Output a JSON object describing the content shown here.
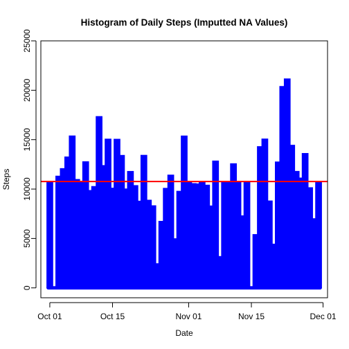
{
  "chart_data": {
    "type": "bar",
    "title": "Histogram of Daily Steps (Imputted NA Values)",
    "xlabel": "Date",
    "ylabel": "Steps",
    "x_ticks": [
      {
        "date": "2012-10-01",
        "label": "Oct 01"
      },
      {
        "date": "2012-10-15",
        "label": "Oct 15"
      },
      {
        "date": "2012-11-01",
        "label": "Nov 01"
      },
      {
        "date": "2012-11-15",
        "label": "Nov 15"
      },
      {
        "date": "2012-12-01",
        "label": "Dec 01"
      }
    ],
    "y_ticks": [
      0,
      5000,
      10000,
      15000,
      20000,
      25000
    ],
    "xlim": [
      "2012-09-29",
      "2012-12-02"
    ],
    "ylim": [
      -1000,
      25000
    ],
    "series": [
      {
        "x": [
          "2012-10-01",
          "2012-10-02",
          "2012-10-03",
          "2012-10-04",
          "2012-10-05",
          "2012-10-06",
          "2012-10-07",
          "2012-10-08",
          "2012-10-09",
          "2012-10-10",
          "2012-10-11",
          "2012-10-12",
          "2012-10-13",
          "2012-10-14",
          "2012-10-15",
          "2012-10-16",
          "2012-10-17",
          "2012-10-18",
          "2012-10-19",
          "2012-10-20",
          "2012-10-21",
          "2012-10-22",
          "2012-10-23",
          "2012-10-24",
          "2012-10-25",
          "2012-10-26",
          "2012-10-27",
          "2012-10-28",
          "2012-10-29",
          "2012-10-30",
          "2012-10-31",
          "2012-11-01",
          "2012-11-02",
          "2012-11-03",
          "2012-11-04",
          "2012-11-05",
          "2012-11-06",
          "2012-11-07",
          "2012-11-08",
          "2012-11-09",
          "2012-11-10",
          "2012-11-11",
          "2012-11-12",
          "2012-11-13",
          "2012-11-14",
          "2012-11-15",
          "2012-11-16",
          "2012-11-17",
          "2012-11-18",
          "2012-11-19",
          "2012-11-20",
          "2012-11-21",
          "2012-11-22",
          "2012-11-23",
          "2012-11-24",
          "2012-11-25",
          "2012-11-26",
          "2012-11-27",
          "2012-11-28",
          "2012-11-29",
          "2012-11-30"
        ],
        "values": [
          10766,
          126,
          11352,
          12116,
          13294,
          15420,
          11015,
          10766,
          12811,
          9900,
          10304,
          17382,
          12426,
          15098,
          10139,
          15084,
          13452,
          10056,
          11829,
          10395,
          8821,
          13460,
          8918,
          8355,
          2492,
          6778,
          10119,
          11458,
          5018,
          9819,
          15414,
          10766,
          10600,
          10571,
          10766,
          10439,
          8334,
          12883,
          3219,
          10766,
          10766,
          12608,
          10765,
          7336,
          10766,
          41,
          5441,
          14339,
          15110,
          8841,
          4472,
          12787,
          20427,
          21194,
          14478,
          11834,
          11162,
          13646,
          10183,
          7047,
          10766
        ]
      }
    ],
    "hlines": [
      {
        "y": 10766,
        "color": "#ff0000"
      }
    ],
    "colors": {
      "bars": "#0000ff",
      "hline": "#ff0000",
      "axis": "#000000",
      "background": "#ffffff"
    },
    "grid": false,
    "legend": "none"
  }
}
